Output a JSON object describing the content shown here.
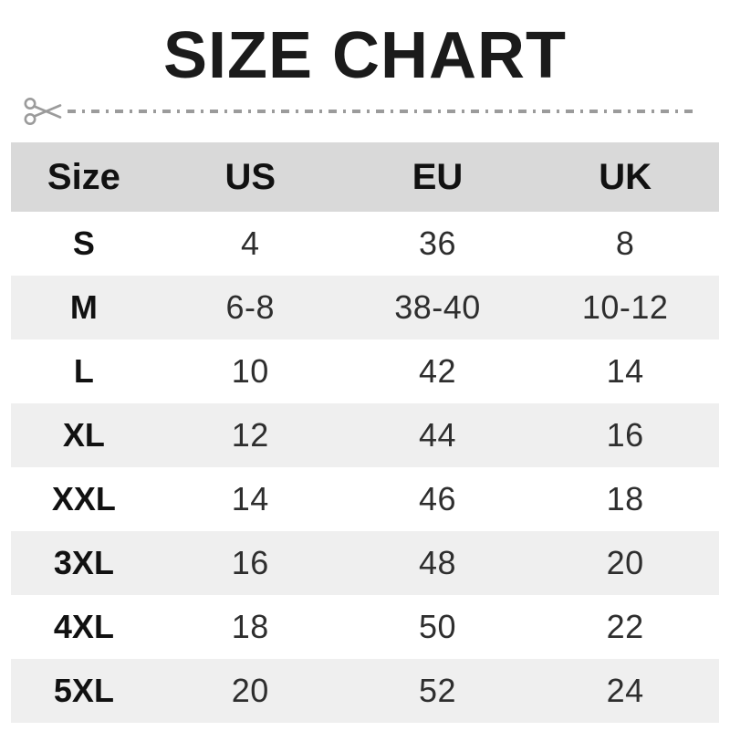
{
  "title": "SIZE CHART",
  "icons": {
    "scissors": "scissors-icon"
  },
  "colors": {
    "header_bg": "#d9d9d9",
    "alt_row_bg": "#efefef",
    "title_text": "#1b1b1b",
    "cell_text": "#2e2e2e",
    "cut_line": "#9b9b9b"
  },
  "chart_data": {
    "type": "table",
    "title": "SIZE CHART",
    "columns": [
      "Size",
      "US",
      "EU",
      "UK"
    ],
    "rows": [
      [
        "S",
        "4",
        "36",
        "8"
      ],
      [
        "M",
        "6-8",
        "38-40",
        "10-12"
      ],
      [
        "L",
        "10",
        "42",
        "14"
      ],
      [
        "XL",
        "12",
        "44",
        "16"
      ],
      [
        "XXL",
        "14",
        "46",
        "18"
      ],
      [
        "3XL",
        "16",
        "48",
        "20"
      ],
      [
        "4XL",
        "18",
        "50",
        "22"
      ],
      [
        "5XL",
        "20",
        "52",
        "24"
      ]
    ],
    "layout": {
      "grid": false,
      "header_background": "#d9d9d9",
      "zebra_striping": true
    }
  }
}
